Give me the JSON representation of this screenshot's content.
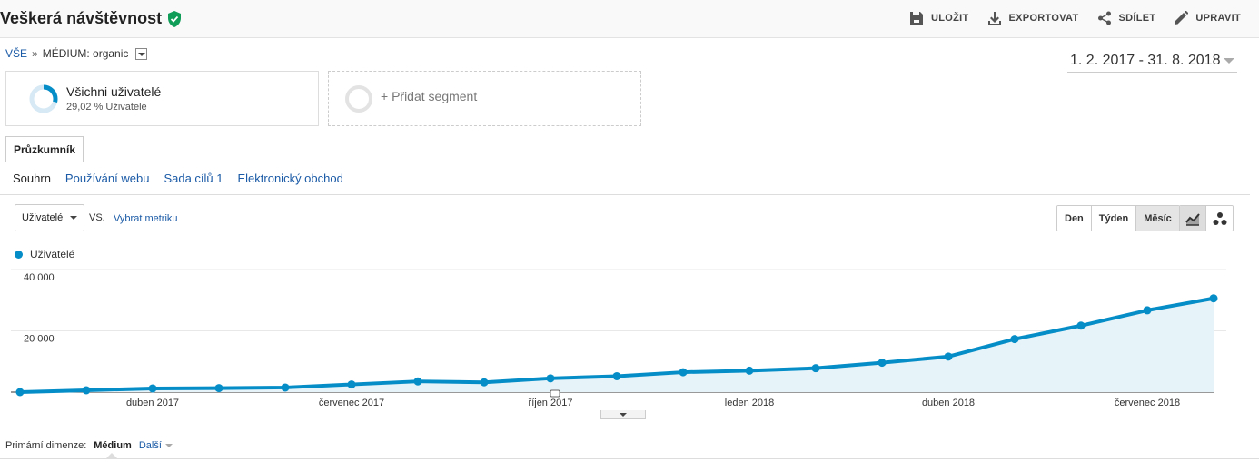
{
  "header": {
    "title": "Veškerá návštěvnost",
    "actions": [
      {
        "label": "ULOŽIT",
        "icon": "save-icon"
      },
      {
        "label": "EXPORTOVAT",
        "icon": "download-icon"
      },
      {
        "label": "SDÍLET",
        "icon": "share-icon"
      },
      {
        "label": "UPRAVIT",
        "icon": "pencil-icon"
      }
    ]
  },
  "breadcrumb": {
    "root": "VŠE",
    "separator": "»",
    "filter": "MÉDIUM: organic"
  },
  "date_range": "1. 2. 2017 - 31. 8. 2018",
  "segments": {
    "active_name": "Všichni uživatelé",
    "active_share": "29,02 % Uživatelé",
    "active_fraction": 0.2902,
    "add_label": "+ Přidat segment"
  },
  "tabs": {
    "explorer": "Průzkumník",
    "subtabs": [
      "Souhrn",
      "Používání webu",
      "Sada cílů 1",
      "Elektronický obchod"
    ]
  },
  "controls": {
    "metric": "Uživatelé",
    "vs": "VS.",
    "choose_metric": "Vybrat metriku",
    "periods": [
      "Den",
      "Týden",
      "Měsíc"
    ],
    "active_period": "Měsíc"
  },
  "colors": {
    "series": "#058dc7",
    "area": "#e6f3f9",
    "link": "#1a5aa6",
    "verified": "#0f9d58"
  },
  "chart_data": {
    "type": "area",
    "legend": "Uživatelé",
    "ytick_labels": [
      "20 000",
      "40 000"
    ],
    "yticks": [
      20000,
      40000
    ],
    "ylim": [
      0,
      40000
    ],
    "xtick_labels": [
      "duben 2017",
      "červenec 2017",
      "říjen 2017",
      "leden 2018",
      "duben 2018",
      "červenec 2018"
    ],
    "xtick_positions": [
      2,
      5,
      8,
      11,
      14,
      17
    ],
    "x": [
      "2017-02",
      "2017-03",
      "2017-04",
      "2017-05",
      "2017-06",
      "2017-07",
      "2017-08",
      "2017-09",
      "2017-10",
      "2017-11",
      "2017-12",
      "2018-01",
      "2018-02",
      "2018-03",
      "2018-04",
      "2018-05",
      "2018-06",
      "2018-07",
      "2018-08"
    ],
    "values": [
      0,
      600,
      1200,
      1300,
      1500,
      2500,
      3500,
      3200,
      4500,
      5200,
      6500,
      7000,
      7800,
      9600,
      11600,
      17300,
      21700,
      26700,
      30600
    ],
    "grid": true
  },
  "footer": {
    "primary_dimension_label": "Primární dimenze:",
    "active_dimension": "Médium",
    "more": "Další"
  }
}
